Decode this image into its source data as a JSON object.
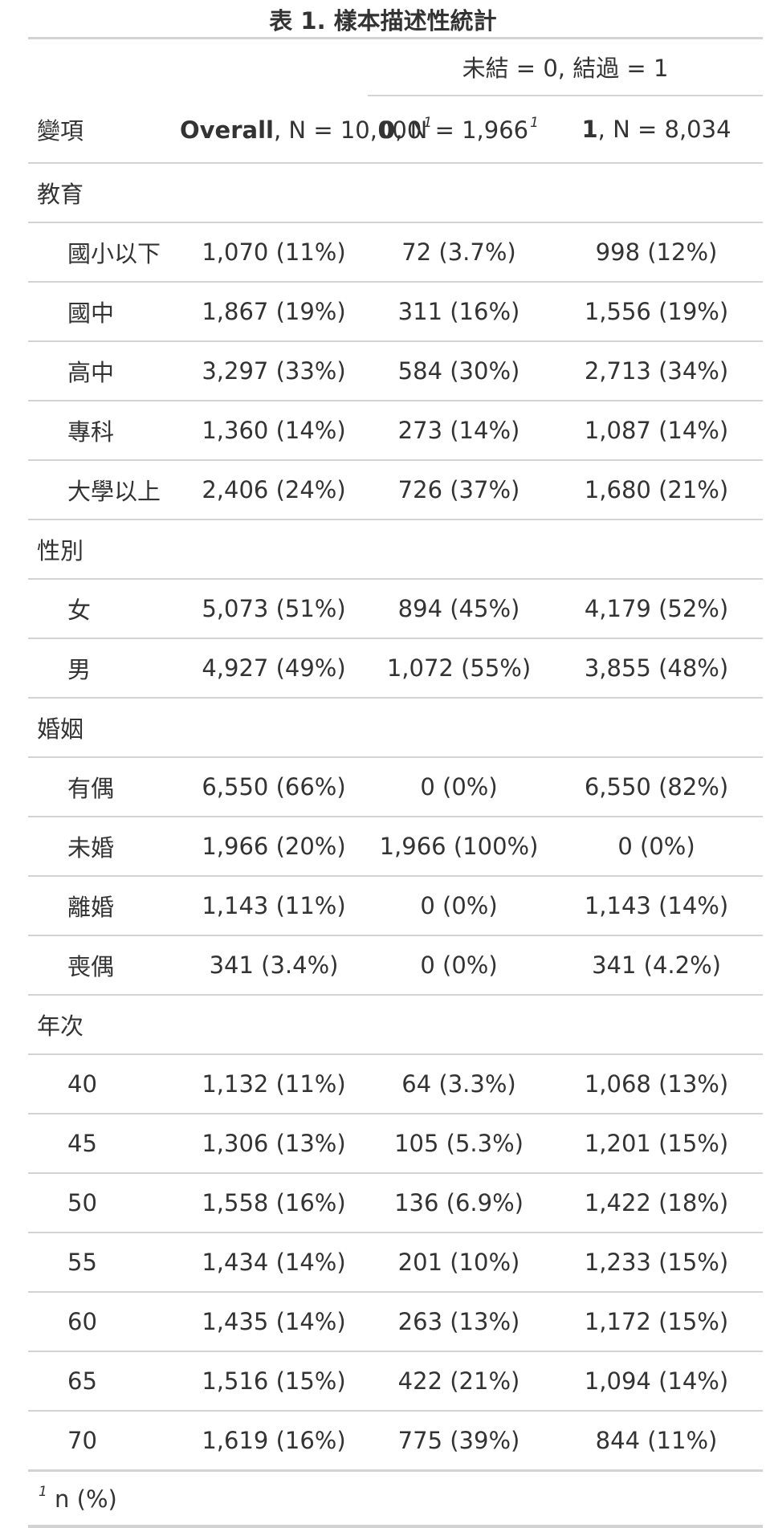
{
  "title": "表 1. 樣本描述性統計",
  "spanner": "未結 = 0, 結過 = 1",
  "header": {
    "variable": "變項",
    "overall_label": "Overall",
    "overall_n": ", N = 10,000",
    "col0_label": "0",
    "col0_n": ", N = 1,966",
    "col1_label": "1",
    "col1_n": ", N = 8,034",
    "footnote_mark": "1"
  },
  "groups": [
    {
      "label": "教育",
      "rows": [
        {
          "level": "國小以下",
          "overall": "1,070 (11%)",
          "c0": "72 (3.7%)",
          "c1": "998 (12%)"
        },
        {
          "level": "國中",
          "overall": "1,867 (19%)",
          "c0": "311 (16%)",
          "c1": "1,556 (19%)"
        },
        {
          "level": "高中",
          "overall": "3,297 (33%)",
          "c0": "584 (30%)",
          "c1": "2,713 (34%)"
        },
        {
          "level": "專科",
          "overall": "1,360 (14%)",
          "c0": "273 (14%)",
          "c1": "1,087 (14%)"
        },
        {
          "level": "大學以上",
          "overall": "2,406 (24%)",
          "c0": "726 (37%)",
          "c1": "1,680 (21%)"
        }
      ]
    },
    {
      "label": "性別",
      "rows": [
        {
          "level": "女",
          "overall": "5,073 (51%)",
          "c0": "894 (45%)",
          "c1": "4,179 (52%)"
        },
        {
          "level": "男",
          "overall": "4,927 (49%)",
          "c0": "1,072 (55%)",
          "c1": "3,855 (48%)"
        }
      ]
    },
    {
      "label": "婚姻",
      "rows": [
        {
          "level": "有偶",
          "overall": "6,550 (66%)",
          "c0": "0 (0%)",
          "c1": "6,550 (82%)"
        },
        {
          "level": "未婚",
          "overall": "1,966 (20%)",
          "c0": "1,966 (100%)",
          "c1": "0 (0%)"
        },
        {
          "level": "離婚",
          "overall": "1,143 (11%)",
          "c0": "0 (0%)",
          "c1": "1,143 (14%)"
        },
        {
          "level": "喪偶",
          "overall": "341 (3.4%)",
          "c0": "0 (0%)",
          "c1": "341 (4.2%)"
        }
      ]
    },
    {
      "label": "年次",
      "rows": [
        {
          "level": "40",
          "overall": "1,132 (11%)",
          "c0": "64 (3.3%)",
          "c1": "1,068 (13%)"
        },
        {
          "level": "45",
          "overall": "1,306 (13%)",
          "c0": "105 (5.3%)",
          "c1": "1,201 (15%)"
        },
        {
          "level": "50",
          "overall": "1,558 (16%)",
          "c0": "136 (6.9%)",
          "c1": "1,422 (18%)"
        },
        {
          "level": "55",
          "overall": "1,434 (14%)",
          "c0": "201 (10%)",
          "c1": "1,233 (15%)"
        },
        {
          "level": "60",
          "overall": "1,435 (14%)",
          "c0": "263 (13%)",
          "c1": "1,172 (15%)"
        },
        {
          "level": "65",
          "overall": "1,516 (15%)",
          "c0": "422 (21%)",
          "c1": "1,094 (14%)"
        },
        {
          "level": "70",
          "overall": "1,619 (16%)",
          "c0": "775 (39%)",
          "c1": "844 (11%)"
        }
      ]
    }
  ],
  "footnote": {
    "mark": "1",
    "text": " n (%)"
  }
}
